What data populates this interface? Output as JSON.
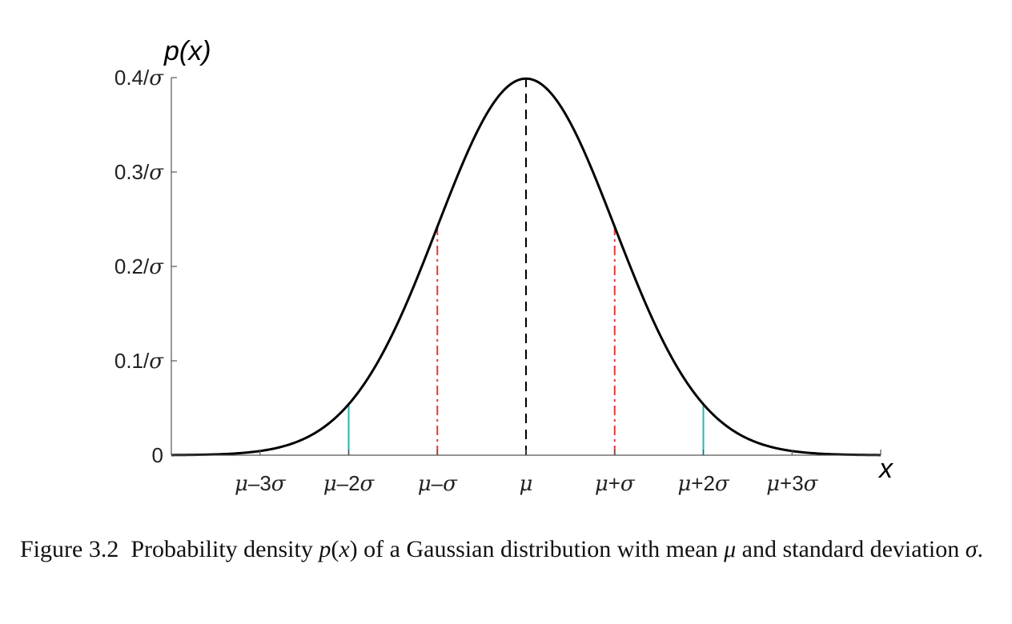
{
  "chart_data": {
    "type": "line",
    "series": [
      {
        "kind": "gaussian-pdf",
        "mean": 0,
        "sd": 1,
        "x_min": -4,
        "x_max": 4,
        "color": "#000000"
      }
    ],
    "xlabel": "x",
    "ylabel": "p(x)",
    "xlim": [
      -4,
      4
    ],
    "ylim": [
      0,
      0.4
    ],
    "x_ticks": [
      {
        "value": -3,
        "label": "μ–3σ"
      },
      {
        "value": -2,
        "label": "μ–2σ"
      },
      {
        "value": -1,
        "label": "μ–σ"
      },
      {
        "value": 0,
        "label": "μ"
      },
      {
        "value": 1,
        "label": "μ+σ"
      },
      {
        "value": 2,
        "label": "μ+2σ"
      },
      {
        "value": 3,
        "label": "μ+3σ"
      }
    ],
    "y_ticks": [
      {
        "value": 0,
        "label": "0"
      },
      {
        "value": 0.1,
        "label": "0.1/σ"
      },
      {
        "value": 0.2,
        "label": "0.2/σ"
      },
      {
        "value": 0.3,
        "label": "0.3/σ"
      },
      {
        "value": 0.4,
        "label": "0.4/σ"
      }
    ],
    "vertical_markers": [
      {
        "x": 0,
        "style": "dashed",
        "color": "#000000"
      },
      {
        "x": -1,
        "style": "dash-dot",
        "color": "#e53935"
      },
      {
        "x": 1,
        "style": "dash-dot",
        "color": "#e53935"
      },
      {
        "x": -2,
        "style": "solid",
        "color": "#26b5b5"
      },
      {
        "x": 2,
        "style": "solid",
        "color": "#26b5b5"
      }
    ],
    "grid": false
  },
  "caption": {
    "label": "Figure 3.2",
    "text_1": "Probability density ",
    "p": "p",
    "paren_open": "(",
    "x": "x",
    "paren_close": ")",
    "text_2": " of a Gaussian distribution with mean ",
    "mu": "μ",
    "text_3": " and standard deviation ",
    "sigma": "σ",
    "end": "."
  }
}
